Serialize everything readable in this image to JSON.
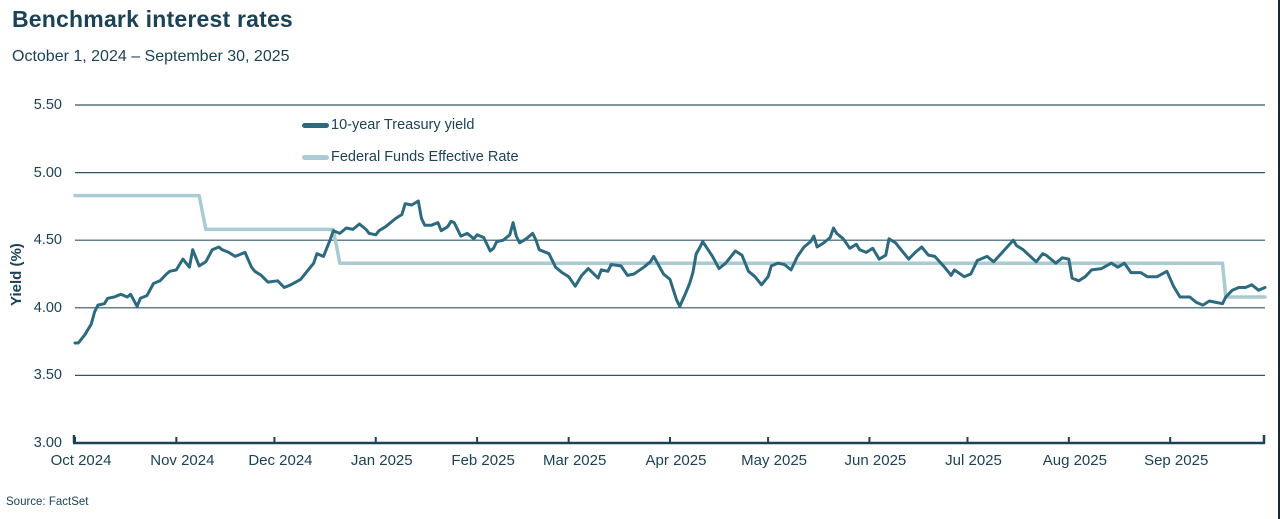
{
  "page": {
    "title": "Benchmark interest rates",
    "subtitle": "October 1, 2024 – September 30, 2025",
    "source": "Source: FactSet",
    "ylabel": "Yield (%)"
  },
  "colors": {
    "text": "#1c4254",
    "grid": "#34566a",
    "axis": "#1c4254",
    "treasury_line": "#2d6a7d",
    "fed_funds_line": "#a9cbd1"
  },
  "chart_data": {
    "type": "line",
    "title": "Benchmark interest rates",
    "subtitle": "October 1, 2024 – September 30, 2025",
    "xlabel": "",
    "ylabel": "Yield (%)",
    "x_unit": "days since Oct 1, 2024",
    "xlim": [
      0,
      364
    ],
    "ylim": [
      3.0,
      5.5
    ],
    "grid": "horizontal",
    "legend_position": "top-center",
    "y_ticks": [
      {
        "value": 5.5,
        "label": "5.50"
      },
      {
        "value": 5.0,
        "label": "5.00"
      },
      {
        "value": 4.5,
        "label": "4.50"
      },
      {
        "value": 4.0,
        "label": "4.00"
      },
      {
        "value": 3.5,
        "label": "3.50"
      },
      {
        "value": 3.0,
        "label": "3.00"
      }
    ],
    "x_ticks": [
      {
        "day": 0,
        "label": "Oct 2024"
      },
      {
        "day": 31,
        "label": "Nov 2024"
      },
      {
        "day": 61,
        "label": "Dec 2024"
      },
      {
        "day": 92,
        "label": "Jan 2025"
      },
      {
        "day": 123,
        "label": "Feb 2025"
      },
      {
        "day": 151,
        "label": "Mar 2025"
      },
      {
        "day": 182,
        "label": "Apr 2025"
      },
      {
        "day": 212,
        "label": "May 2025"
      },
      {
        "day": 243,
        "label": "Jun 2025"
      },
      {
        "day": 273,
        "label": "Jul 2025"
      },
      {
        "day": 304,
        "label": "Aug 2025"
      },
      {
        "day": 335,
        "label": "Sep 2025"
      }
    ],
    "series": [
      {
        "name": "10-year Treasury yield",
        "color": "#2d6a7d",
        "width": 3,
        "points": [
          [
            0,
            3.74
          ],
          [
            1,
            3.74
          ],
          [
            3,
            3.8
          ],
          [
            5,
            3.88
          ],
          [
            6,
            3.97
          ],
          [
            7,
            4.02
          ],
          [
            9,
            4.03
          ],
          [
            10,
            4.07
          ],
          [
            12,
            4.08
          ],
          [
            14,
            4.1
          ],
          [
            16,
            4.08
          ],
          [
            17,
            4.1
          ],
          [
            19,
            4.01
          ],
          [
            20,
            4.07
          ],
          [
            22,
            4.09
          ],
          [
            24,
            4.18
          ],
          [
            26,
            4.2
          ],
          [
            28,
            4.25
          ],
          [
            29,
            4.27
          ],
          [
            31,
            4.28
          ],
          [
            33,
            4.36
          ],
          [
            35,
            4.3
          ],
          [
            36,
            4.43
          ],
          [
            38,
            4.31
          ],
          [
            40,
            4.34
          ],
          [
            42,
            4.43
          ],
          [
            44,
            4.45
          ],
          [
            45,
            4.43
          ],
          [
            47,
            4.41
          ],
          [
            49,
            4.38
          ],
          [
            52,
            4.41
          ],
          [
            54,
            4.3
          ],
          [
            55,
            4.27
          ],
          [
            57,
            4.24
          ],
          [
            59,
            4.19
          ],
          [
            62,
            4.2
          ],
          [
            64,
            4.15
          ],
          [
            66,
            4.17
          ],
          [
            69,
            4.21
          ],
          [
            71,
            4.27
          ],
          [
            73,
            4.33
          ],
          [
            74,
            4.4
          ],
          [
            76,
            4.38
          ],
          [
            78,
            4.5
          ],
          [
            79,
            4.57
          ],
          [
            81,
            4.55
          ],
          [
            83,
            4.59
          ],
          [
            85,
            4.58
          ],
          [
            87,
            4.62
          ],
          [
            89,
            4.58
          ],
          [
            90,
            4.55
          ],
          [
            92,
            4.54
          ],
          [
            93,
            4.57
          ],
          [
            95,
            4.6
          ],
          [
            98,
            4.66
          ],
          [
            100,
            4.69
          ],
          [
            101,
            4.77
          ],
          [
            103,
            4.76
          ],
          [
            105,
            4.79
          ],
          [
            106,
            4.66
          ],
          [
            107,
            4.61
          ],
          [
            109,
            4.61
          ],
          [
            111,
            4.63
          ],
          [
            112,
            4.57
          ],
          [
            114,
            4.6
          ],
          [
            115,
            4.64
          ],
          [
            116,
            4.63
          ],
          [
            118,
            4.53
          ],
          [
            120,
            4.55
          ],
          [
            122,
            4.51
          ],
          [
            123,
            4.54
          ],
          [
            125,
            4.52
          ],
          [
            127,
            4.42
          ],
          [
            128,
            4.44
          ],
          [
            129,
            4.49
          ],
          [
            131,
            4.5
          ],
          [
            133,
            4.54
          ],
          [
            134,
            4.63
          ],
          [
            135,
            4.53
          ],
          [
            136,
            4.48
          ],
          [
            138,
            4.51
          ],
          [
            140,
            4.55
          ],
          [
            141,
            4.5
          ],
          [
            142,
            4.43
          ],
          [
            145,
            4.4
          ],
          [
            147,
            4.3
          ],
          [
            149,
            4.26
          ],
          [
            151,
            4.23
          ],
          [
            153,
            4.16
          ],
          [
            155,
            4.24
          ],
          [
            157,
            4.29
          ],
          [
            160,
            4.22
          ],
          [
            161,
            4.28
          ],
          [
            163,
            4.27
          ],
          [
            164,
            4.32
          ],
          [
            167,
            4.31
          ],
          [
            169,
            4.24
          ],
          [
            171,
            4.25
          ],
          [
            174,
            4.3
          ],
          [
            176,
            4.34
          ],
          [
            177,
            4.38
          ],
          [
            180,
            4.25
          ],
          [
            182,
            4.21
          ],
          [
            184,
            4.06
          ],
          [
            185,
            4.01
          ],
          [
            187,
            4.12
          ],
          [
            188,
            4.18
          ],
          [
            189,
            4.26
          ],
          [
            190,
            4.4
          ],
          [
            191,
            4.44
          ],
          [
            192,
            4.49
          ],
          [
            195,
            4.38
          ],
          [
            197,
            4.29
          ],
          [
            199,
            4.33
          ],
          [
            202,
            4.42
          ],
          [
            204,
            4.39
          ],
          [
            206,
            4.27
          ],
          [
            208,
            4.23
          ],
          [
            210,
            4.17
          ],
          [
            212,
            4.23
          ],
          [
            213,
            4.31
          ],
          [
            215,
            4.33
          ],
          [
            217,
            4.32
          ],
          [
            219,
            4.28
          ],
          [
            221,
            4.38
          ],
          [
            223,
            4.45
          ],
          [
            225,
            4.49
          ],
          [
            226,
            4.53
          ],
          [
            227,
            4.45
          ],
          [
            229,
            4.48
          ],
          [
            231,
            4.52
          ],
          [
            232,
            4.59
          ],
          [
            233,
            4.55
          ],
          [
            235,
            4.51
          ],
          [
            237,
            4.44
          ],
          [
            239,
            4.47
          ],
          [
            240,
            4.43
          ],
          [
            242,
            4.41
          ],
          [
            244,
            4.44
          ],
          [
            246,
            4.36
          ],
          [
            248,
            4.39
          ],
          [
            249,
            4.51
          ],
          [
            251,
            4.48
          ],
          [
            253,
            4.42
          ],
          [
            255,
            4.36
          ],
          [
            257,
            4.41
          ],
          [
            259,
            4.45
          ],
          [
            261,
            4.39
          ],
          [
            263,
            4.38
          ],
          [
            266,
            4.3
          ],
          [
            268,
            4.24
          ],
          [
            269,
            4.28
          ],
          [
            272,
            4.23
          ],
          [
            274,
            4.25
          ],
          [
            276,
            4.35
          ],
          [
            279,
            4.38
          ],
          [
            281,
            4.34
          ],
          [
            284,
            4.42
          ],
          [
            287,
            4.5
          ],
          [
            288,
            4.46
          ],
          [
            290,
            4.43
          ],
          [
            294,
            4.34
          ],
          [
            296,
            4.4
          ],
          [
            297,
            4.39
          ],
          [
            300,
            4.33
          ],
          [
            302,
            4.37
          ],
          [
            304,
            4.36
          ],
          [
            305,
            4.22
          ],
          [
            307,
            4.2
          ],
          [
            309,
            4.23
          ],
          [
            311,
            4.28
          ],
          [
            314,
            4.29
          ],
          [
            317,
            4.33
          ],
          [
            319,
            4.3
          ],
          [
            321,
            4.33
          ],
          [
            323,
            4.26
          ],
          [
            326,
            4.26
          ],
          [
            328,
            4.23
          ],
          [
            331,
            4.23
          ],
          [
            334,
            4.27
          ],
          [
            336,
            4.16
          ],
          [
            338,
            4.08
          ],
          [
            341,
            4.08
          ],
          [
            343,
            4.04
          ],
          [
            345,
            4.02
          ],
          [
            347,
            4.05
          ],
          [
            349,
            4.04
          ],
          [
            351,
            4.03
          ],
          [
            352,
            4.08
          ],
          [
            354,
            4.13
          ],
          [
            356,
            4.15
          ],
          [
            358,
            4.15
          ],
          [
            360,
            4.17
          ],
          [
            362,
            4.13
          ],
          [
            364,
            4.15
          ]
        ]
      },
      {
        "name": "Federal Funds Effective Rate",
        "color": "#a9cbd1",
        "width": 3.5,
        "points": [
          [
            0,
            4.83
          ],
          [
            38,
            4.83
          ],
          [
            40,
            4.58
          ],
          [
            79,
            4.58
          ],
          [
            81,
            4.33
          ],
          [
            351,
            4.33
          ],
          [
            352,
            4.08
          ],
          [
            364,
            4.08
          ]
        ]
      }
    ]
  }
}
